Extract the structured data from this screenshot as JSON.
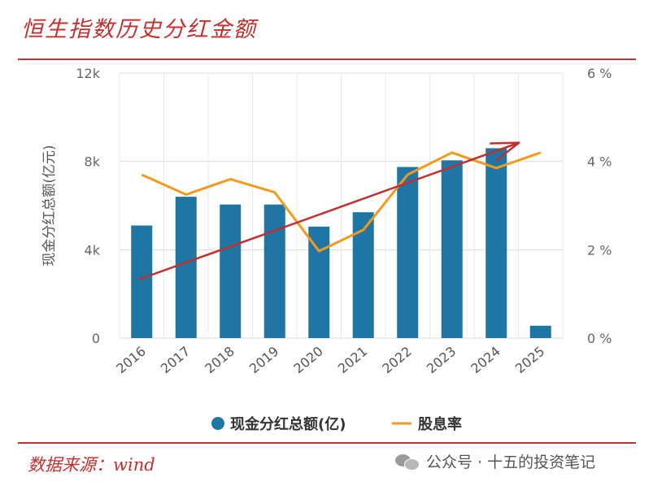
{
  "header": {
    "title": "恒生指数历史分红金额"
  },
  "footer": {
    "source": "数据来源：wind",
    "watermark": "公众号 · 十五的投资笔记",
    "watermark_icon": "wechat-icon"
  },
  "colors": {
    "bar": "#1f75a3",
    "line": "#f39a1e",
    "arrow": "#c0302f",
    "brand": "#c0302f"
  },
  "chart_data": {
    "type": "bar",
    "categories": [
      "2016",
      "2017",
      "2018",
      "2019",
      "2020",
      "2021",
      "2022",
      "2023",
      "2024",
      "2025"
    ],
    "series": [
      {
        "name": "现金分红总额(亿)",
        "type": "bar",
        "axis": "left",
        "values": [
          5100,
          6400,
          6050,
          6050,
          5050,
          5700,
          7750,
          8050,
          8600,
          560
        ]
      },
      {
        "name": "股息率",
        "type": "line",
        "axis": "right",
        "values": [
          3.7,
          3.25,
          3.6,
          3.3,
          1.97,
          2.45,
          3.7,
          4.2,
          3.85,
          4.2
        ]
      }
    ],
    "annotation": {
      "type": "trend-arrow",
      "from": {
        "x": "2016",
        "y": 2650
      },
      "to": {
        "x": "2024",
        "y": 8850
      }
    },
    "ylabel": "现金分红总额(亿元)",
    "ylim": [
      0,
      12000
    ],
    "y_ticks": [
      0,
      4000,
      8000,
      12000
    ],
    "y_tick_labels": [
      "0",
      "4k",
      "8k",
      "12k"
    ],
    "y2lim": [
      0,
      6
    ],
    "y2_ticks": [
      0,
      2,
      4,
      6
    ],
    "y2_tick_labels": [
      "0 %",
      "2 %",
      "4 %",
      "6 %"
    ],
    "grid": true,
    "legend": "bottom"
  }
}
